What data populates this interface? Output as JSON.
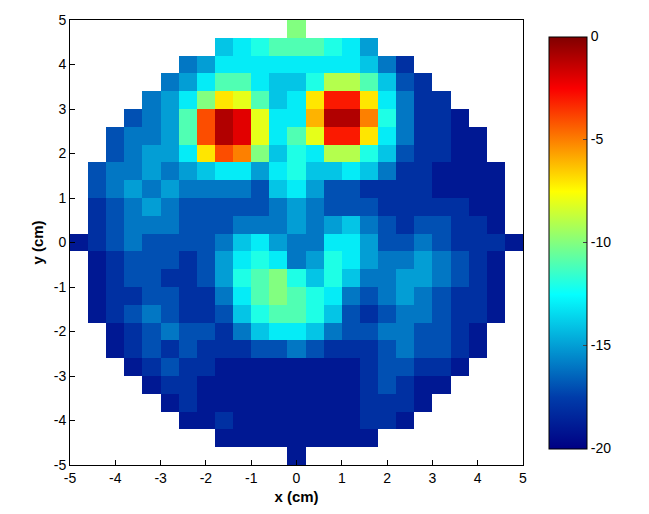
{
  "chart_data": {
    "type": "heatmap",
    "x_label": "x (cm)",
    "y_label": "y (cm)",
    "color": "Jet",
    "xlim": [
      -5,
      5
    ],
    "ylim": [
      -5,
      5
    ],
    "xticks": [
      -5,
      -4,
      -3,
      -2,
      -1,
      0,
      1,
      2,
      3,
      4,
      5
    ],
    "yticks": [
      -5,
      -4,
      -3,
      -2,
      -1,
      0,
      1,
      2,
      3,
      4,
      5
    ],
    "colorbar_range": [
      -20,
      0
    ],
    "colorbar_ticks": [
      0,
      -5,
      -10,
      -15,
      -20
    ],
    "x": [
      -4.8,
      -4.4,
      -4.0,
      -3.6,
      -3.2,
      -2.8,
      -2.4,
      -2.0,
      -1.6,
      -1.2,
      -0.8,
      -0.4,
      0,
      0.4,
      0.8,
      1.2,
      1.6,
      2.0,
      2.4,
      2.8,
      3.2,
      3.6,
      4.0,
      4.4,
      4.8
    ],
    "y": [
      -4.8,
      -4.4,
      -4.0,
      -3.6,
      -3.2,
      -2.8,
      -2.4,
      -2.0,
      -1.6,
      -1.2,
      -0.8,
      -0.4,
      0,
      0.4,
      0.8,
      1.2,
      1.6,
      2.0,
      2.4,
      2.8,
      3.2,
      3.6,
      4.0,
      4.4,
      4.8
    ],
    "z": [
      [
        null,
        null,
        null,
        null,
        null,
        null,
        null,
        null,
        null,
        null,
        null,
        null,
        -19,
        null,
        null,
        null,
        null,
        null,
        null,
        null,
        null,
        null,
        null,
        null,
        null
      ],
      [
        null,
        null,
        null,
        null,
        null,
        null,
        null,
        null,
        -19,
        -19,
        -19,
        -19,
        -19,
        -19,
        -19,
        -19,
        -19,
        null,
        null,
        null,
        null,
        null,
        null,
        null,
        null
      ],
      [
        null,
        null,
        null,
        null,
        null,
        null,
        -19,
        -19,
        -18,
        -19,
        -19,
        -19,
        -19,
        -19,
        -19,
        -19,
        -18,
        -18,
        -19,
        null,
        null,
        null,
        null,
        null,
        null
      ],
      [
        null,
        null,
        null,
        null,
        null,
        -19,
        -18,
        -19,
        -19,
        -19,
        -19,
        -19,
        -19,
        -19,
        -19,
        -19,
        -18,
        -18,
        -18,
        -19,
        null,
        null,
        null,
        null,
        null
      ],
      [
        null,
        null,
        null,
        null,
        -19,
        -18,
        -18,
        -19,
        -19,
        -19,
        -19,
        -19,
        -19,
        -19,
        -19,
        -19,
        -18,
        -17,
        -18,
        -19,
        -19,
        null,
        null,
        null,
        null
      ],
      [
        null,
        null,
        null,
        -19,
        -18,
        -17,
        -18,
        -18,
        -19,
        -19,
        -19,
        -19,
        -19,
        -19,
        -19,
        -19,
        -18,
        -17,
        -17,
        -18,
        -18,
        -19,
        null,
        null,
        null
      ],
      [
        null,
        null,
        -19,
        -18,
        -17,
        -18,
        -17,
        -18,
        -18,
        -18,
        -17,
        -17,
        -16,
        -17,
        -18,
        -18,
        -18,
        -17,
        -16,
        -17,
        -17,
        -18,
        -19,
        null,
        null
      ],
      [
        null,
        null,
        -19,
        -18,
        -17,
        -16,
        -17,
        -17,
        -18,
        -16,
        -14,
        -13,
        -13,
        -14,
        -16,
        -17,
        -17,
        -16,
        -16,
        -17,
        -17,
        -18,
        -19,
        null,
        null
      ],
      [
        null,
        -19,
        -18,
        -17,
        -16,
        -17,
        -18,
        -18,
        -17,
        -14,
        -12,
        -11,
        -11,
        -12,
        -14,
        -17,
        -18,
        -17,
        -16,
        -16,
        -17,
        -18,
        -18,
        -19,
        null
      ],
      [
        null,
        -19,
        -18,
        -18,
        -17,
        -17,
        -18,
        -18,
        -16,
        -13,
        -11,
        -10,
        -11,
        -12,
        -13,
        -16,
        -17,
        -16,
        -15,
        -16,
        -17,
        -18,
        -18,
        -19,
        null
      ],
      [
        null,
        -19,
        -18,
        -17,
        -17,
        -18,
        -18,
        -17,
        -15,
        -12,
        -11,
        -10,
        -12,
        -14,
        -12,
        -14,
        -16,
        -16,
        -15,
        -15,
        -16,
        -17,
        -18,
        -19,
        null
      ],
      [
        null,
        -19,
        -18,
        -17,
        -17,
        -17,
        -18,
        -17,
        -15,
        -13,
        -12,
        -13,
        -16,
        -15,
        -12,
        -13,
        -15,
        -16,
        -16,
        -15,
        -16,
        -17,
        -18,
        -19,
        null
      ],
      [
        -19,
        -18,
        -17,
        -16,
        -17,
        -17,
        -17,
        -17,
        -16,
        -14,
        -13,
        -15,
        -16,
        -16,
        -13,
        -13,
        -15,
        -17,
        -17,
        -16,
        -17,
        -18,
        -18,
        -18,
        -19
      ],
      [
        null,
        -18,
        -17,
        -16,
        -16,
        -16,
        -17,
        -17,
        -17,
        -16,
        -16,
        -16,
        -15,
        -16,
        -15,
        -14,
        -16,
        -17,
        -18,
        -17,
        -17,
        -18,
        -18,
        -19,
        null
      ],
      [
        null,
        -18,
        -17,
        -16,
        -15,
        -16,
        -17,
        -17,
        -17,
        -17,
        -17,
        -16,
        -15,
        -16,
        -17,
        -17,
        -17,
        -18,
        -18,
        -18,
        -18,
        -18,
        -19,
        -19,
        null
      ],
      [
        null,
        -17,
        -16,
        -15,
        -16,
        -15,
        -16,
        -16,
        -16,
        -16,
        -17,
        -14,
        -13,
        -15,
        -17,
        -17,
        -18,
        -18,
        -18,
        -18,
        -19,
        -19,
        -19,
        -19,
        null
      ],
      [
        null,
        -17,
        -16,
        -16,
        -15,
        -16,
        -15,
        -14,
        -13,
        -13,
        -15,
        -13,
        -12,
        -14,
        -14,
        -13,
        -14,
        -16,
        -18,
        -18,
        -19,
        -19,
        -19,
        -19,
        null
      ],
      [
        null,
        null,
        -17,
        -16,
        -15,
        -15,
        -13,
        -7,
        -4,
        -5,
        -10,
        -14,
        -12,
        -13,
        -9,
        -9,
        -12,
        -14,
        -17,
        -18,
        -18,
        -19,
        -19,
        null,
        null
      ],
      [
        null,
        null,
        -17,
        -16,
        -16,
        -15,
        -11,
        -4,
        -1,
        -2,
        -8,
        -13,
        -11,
        -8,
        -3,
        -3,
        -7,
        -13,
        -16,
        -18,
        -18,
        -19,
        -19,
        null,
        null
      ],
      [
        null,
        null,
        null,
        -17,
        -16,
        -15,
        -11,
        -4,
        -1,
        -2,
        -8,
        -13,
        -13,
        -6,
        -1,
        -1,
        -5,
        -12,
        -16,
        -18,
        -18,
        -19,
        null,
        null,
        null
      ],
      [
        null,
        null,
        null,
        null,
        -16,
        -15,
        -13,
        -10,
        -7,
        -8,
        -11,
        -14,
        -13,
        -7,
        -3,
        -3,
        -7,
        -13,
        -16,
        -18,
        -18,
        null,
        null,
        null,
        null
      ],
      [
        null,
        null,
        null,
        null,
        null,
        -16,
        -15,
        -13,
        -11,
        -11,
        -13,
        -14,
        -14,
        -12,
        -9,
        -9,
        -11,
        -14,
        -17,
        -18,
        null,
        null,
        null,
        null,
        null
      ],
      [
        null,
        null,
        null,
        null,
        null,
        null,
        -16,
        -15,
        -13,
        -13,
        -13,
        -13,
        -13,
        -13,
        -13,
        -13,
        -14,
        -16,
        -18,
        null,
        null,
        null,
        null,
        null,
        null
      ],
      [
        null,
        null,
        null,
        null,
        null,
        null,
        null,
        null,
        -14,
        -13,
        -12,
        -11,
        -11,
        -11,
        -12,
        -13,
        -15,
        null,
        null,
        null,
        null,
        null,
        null,
        null,
        null
      ],
      [
        null,
        null,
        null,
        null,
        null,
        null,
        null,
        null,
        null,
        null,
        null,
        null,
        -10,
        null,
        null,
        null,
        null,
        null,
        null,
        null,
        null,
        null,
        null,
        null,
        null
      ]
    ]
  }
}
